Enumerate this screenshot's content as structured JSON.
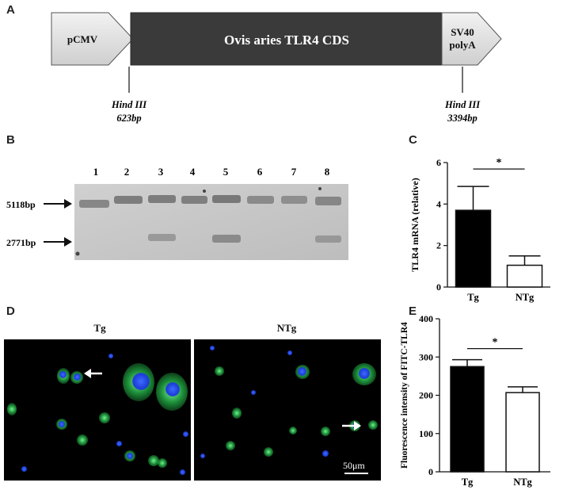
{
  "panels": {
    "a": "A",
    "b": "B",
    "c": "C",
    "d": "D",
    "e": "E"
  },
  "construct": {
    "promoter": "pCMV",
    "cds": "Ovis aries TLR4 CDS",
    "polya_line1": "SV40",
    "polya_line2": "polyA",
    "site1_name": "Hind III",
    "site1_pos": "623bp",
    "site2_name": "Hind III",
    "site2_pos": "3394bp"
  },
  "gel": {
    "lanes": [
      "1",
      "2",
      "3",
      "4",
      "5",
      "6",
      "7",
      "8"
    ],
    "band_upper": "5118bp",
    "band_lower": "2771bp"
  },
  "micrograph": {
    "tg_label": "Tg",
    "ntg_label": "NTg",
    "scale": "50μm"
  },
  "colors": {
    "construct_dark": "#3a3a3a",
    "construct_light": "#e4e4e4",
    "bar_tg": "#000000",
    "bar_ntg": "#ffffff"
  },
  "chart_data": [
    {
      "type": "bar",
      "title": "",
      "categories": [
        "Tg",
        "NTg"
      ],
      "values": [
        3.7,
        1.05
      ],
      "errors": [
        1.15,
        0.45
      ],
      "ylabel": "TLR4 mRNA (relative)",
      "xlabel": "",
      "ylim": [
        0,
        6
      ],
      "yticks": [
        0,
        2,
        4,
        6
      ],
      "significance": "*",
      "grid": false
    },
    {
      "type": "bar",
      "title": "",
      "categories": [
        "Tg",
        "NTg"
      ],
      "values": [
        275,
        207
      ],
      "errors": [
        18,
        15
      ],
      "ylabel": "Fluorescence intensity of FITC-TLR4",
      "xlabel": "",
      "ylim": [
        0,
        400
      ],
      "yticks": [
        0,
        100,
        200,
        300,
        400
      ],
      "significance": "*",
      "grid": false
    }
  ]
}
